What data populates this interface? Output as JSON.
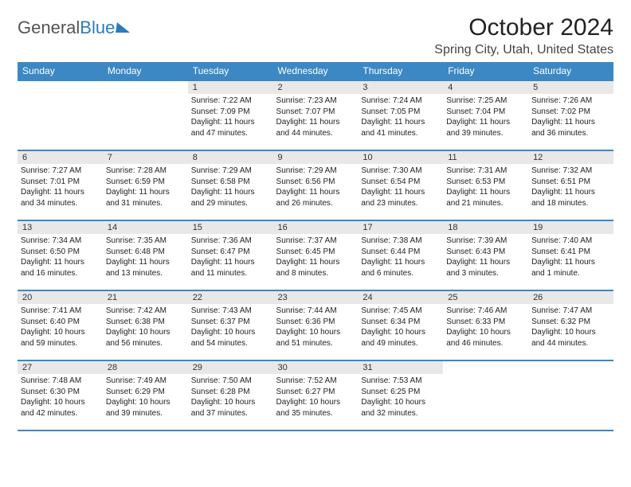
{
  "brand": {
    "part1": "General",
    "part2": "Blue"
  },
  "title": "October 2024",
  "location": "Spring City, Utah, United States",
  "colors": {
    "header_bg": "#3b88c4",
    "daynum_bg": "#e8e8e8",
    "border": "#3b88c4"
  },
  "weekdays": [
    "Sunday",
    "Monday",
    "Tuesday",
    "Wednesday",
    "Thursday",
    "Friday",
    "Saturday"
  ],
  "weeks": [
    [
      null,
      null,
      {
        "n": "1",
        "sr": "7:22 AM",
        "ss": "7:09 PM",
        "dl": "11 hours and 47 minutes."
      },
      {
        "n": "2",
        "sr": "7:23 AM",
        "ss": "7:07 PM",
        "dl": "11 hours and 44 minutes."
      },
      {
        "n": "3",
        "sr": "7:24 AM",
        "ss": "7:05 PM",
        "dl": "11 hours and 41 minutes."
      },
      {
        "n": "4",
        "sr": "7:25 AM",
        "ss": "7:04 PM",
        "dl": "11 hours and 39 minutes."
      },
      {
        "n": "5",
        "sr": "7:26 AM",
        "ss": "7:02 PM",
        "dl": "11 hours and 36 minutes."
      }
    ],
    [
      {
        "n": "6",
        "sr": "7:27 AM",
        "ss": "7:01 PM",
        "dl": "11 hours and 34 minutes."
      },
      {
        "n": "7",
        "sr": "7:28 AM",
        "ss": "6:59 PM",
        "dl": "11 hours and 31 minutes."
      },
      {
        "n": "8",
        "sr": "7:29 AM",
        "ss": "6:58 PM",
        "dl": "11 hours and 29 minutes."
      },
      {
        "n": "9",
        "sr": "7:29 AM",
        "ss": "6:56 PM",
        "dl": "11 hours and 26 minutes."
      },
      {
        "n": "10",
        "sr": "7:30 AM",
        "ss": "6:54 PM",
        "dl": "11 hours and 23 minutes."
      },
      {
        "n": "11",
        "sr": "7:31 AM",
        "ss": "6:53 PM",
        "dl": "11 hours and 21 minutes."
      },
      {
        "n": "12",
        "sr": "7:32 AM",
        "ss": "6:51 PM",
        "dl": "11 hours and 18 minutes."
      }
    ],
    [
      {
        "n": "13",
        "sr": "7:34 AM",
        "ss": "6:50 PM",
        "dl": "11 hours and 16 minutes."
      },
      {
        "n": "14",
        "sr": "7:35 AM",
        "ss": "6:48 PM",
        "dl": "11 hours and 13 minutes."
      },
      {
        "n": "15",
        "sr": "7:36 AM",
        "ss": "6:47 PM",
        "dl": "11 hours and 11 minutes."
      },
      {
        "n": "16",
        "sr": "7:37 AM",
        "ss": "6:45 PM",
        "dl": "11 hours and 8 minutes."
      },
      {
        "n": "17",
        "sr": "7:38 AM",
        "ss": "6:44 PM",
        "dl": "11 hours and 6 minutes."
      },
      {
        "n": "18",
        "sr": "7:39 AM",
        "ss": "6:43 PM",
        "dl": "11 hours and 3 minutes."
      },
      {
        "n": "19",
        "sr": "7:40 AM",
        "ss": "6:41 PM",
        "dl": "11 hours and 1 minute."
      }
    ],
    [
      {
        "n": "20",
        "sr": "7:41 AM",
        "ss": "6:40 PM",
        "dl": "10 hours and 59 minutes."
      },
      {
        "n": "21",
        "sr": "7:42 AM",
        "ss": "6:38 PM",
        "dl": "10 hours and 56 minutes."
      },
      {
        "n": "22",
        "sr": "7:43 AM",
        "ss": "6:37 PM",
        "dl": "10 hours and 54 minutes."
      },
      {
        "n": "23",
        "sr": "7:44 AM",
        "ss": "6:36 PM",
        "dl": "10 hours and 51 minutes."
      },
      {
        "n": "24",
        "sr": "7:45 AM",
        "ss": "6:34 PM",
        "dl": "10 hours and 49 minutes."
      },
      {
        "n": "25",
        "sr": "7:46 AM",
        "ss": "6:33 PM",
        "dl": "10 hours and 46 minutes."
      },
      {
        "n": "26",
        "sr": "7:47 AM",
        "ss": "6:32 PM",
        "dl": "10 hours and 44 minutes."
      }
    ],
    [
      {
        "n": "27",
        "sr": "7:48 AM",
        "ss": "6:30 PM",
        "dl": "10 hours and 42 minutes."
      },
      {
        "n": "28",
        "sr": "7:49 AM",
        "ss": "6:29 PM",
        "dl": "10 hours and 39 minutes."
      },
      {
        "n": "29",
        "sr": "7:50 AM",
        "ss": "6:28 PM",
        "dl": "10 hours and 37 minutes."
      },
      {
        "n": "30",
        "sr": "7:52 AM",
        "ss": "6:27 PM",
        "dl": "10 hours and 35 minutes."
      },
      {
        "n": "31",
        "sr": "7:53 AM",
        "ss": "6:25 PM",
        "dl": "10 hours and 32 minutes."
      },
      null,
      null
    ]
  ],
  "labels": {
    "sunrise": "Sunrise:",
    "sunset": "Sunset:",
    "daylight": "Daylight:"
  }
}
